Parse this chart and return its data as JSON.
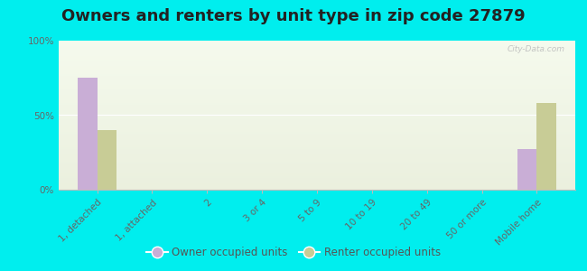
{
  "title": "Owners and renters by unit type in zip code 27879",
  "categories": [
    "1, detached",
    "1, attached",
    "2",
    "3 or 4",
    "5 to 9",
    "10 to 19",
    "20 to 49",
    "50 or more",
    "Mobile home"
  ],
  "owner_values": [
    75,
    0,
    0,
    0,
    0,
    0,
    0,
    0,
    27
  ],
  "renter_values": [
    40,
    0,
    0,
    0,
    0,
    0,
    0,
    0,
    58
  ],
  "owner_color": "#c9aed6",
  "renter_color": "#c8cc96",
  "background_color": "#00eeee",
  "ylim": [
    0,
    100
  ],
  "yticks": [
    0,
    50,
    100
  ],
  "ytick_labels": [
    "0%",
    "50%",
    "100%"
  ],
  "bar_width": 0.35,
  "legend_owner": "Owner occupied units",
  "legend_renter": "Renter occupied units",
  "title_fontsize": 13,
  "axis_fontsize": 7.5,
  "watermark": "City-Data.com"
}
